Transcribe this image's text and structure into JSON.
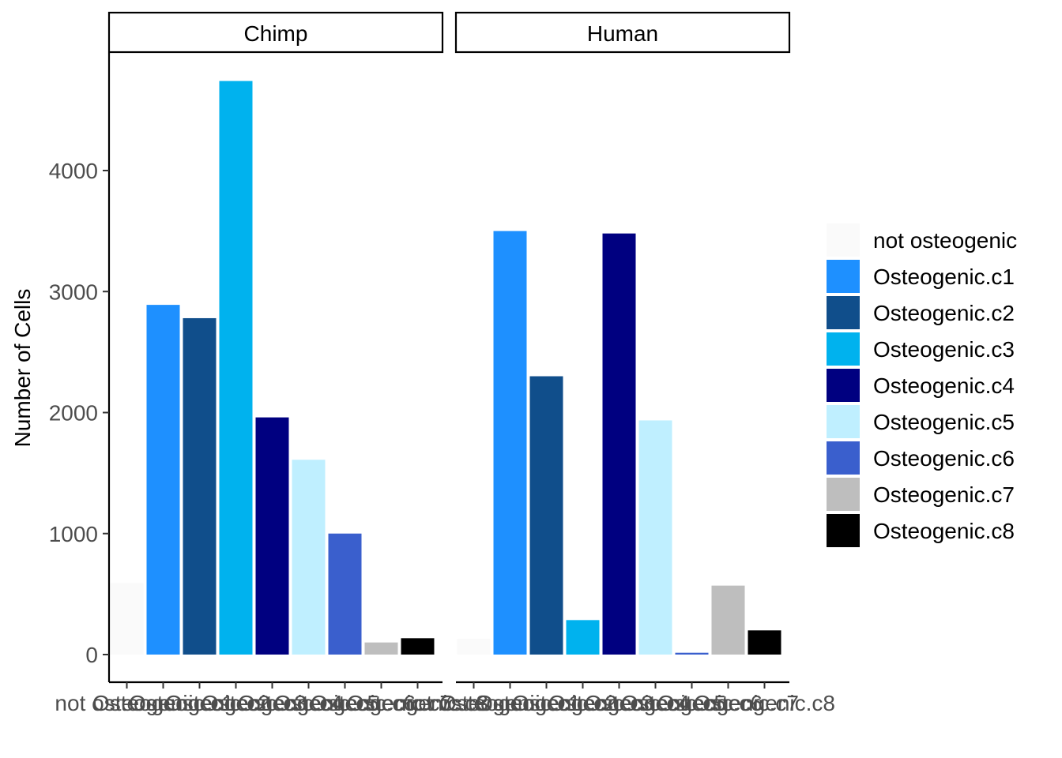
{
  "chart_data": {
    "type": "bar",
    "facet_strip": "top",
    "grid": false,
    "legend_position": "right",
    "ylabel": "Number of Cells",
    "xlabel": "",
    "ylim": [
      0,
      4900
    ],
    "yticks": [
      0,
      1000,
      2000,
      3000,
      4000
    ],
    "ytick_labels": [
      "0",
      "1000",
      "2000",
      "3000",
      "4000"
    ],
    "categories": [
      "not osteogenic",
      "Osteogenic.c1",
      "Osteogenic.c2",
      "Osteogenic.c3",
      "Osteogenic.c4",
      "Osteogenic.c5",
      "Osteogenic.c6",
      "Osteogenic.c7",
      "Osteogenic.c8"
    ],
    "colors": [
      "#FAFAFA",
      "#1E90FF",
      "#104E8B",
      "#00B2EE",
      "#000080",
      "#BFEFFF",
      "#3A5FCD",
      "#BEBEBE",
      "#000000"
    ],
    "facets": [
      {
        "name": "Chimp",
        "values": [
          590,
          2890,
          2780,
          4740,
          1960,
          1610,
          1000,
          100,
          135
        ]
      },
      {
        "name": "Human",
        "values": [
          130,
          3500,
          2300,
          285,
          3480,
          1935,
          15,
          570,
          200
        ]
      }
    ],
    "legend": {
      "entries": [
        "not osteogenic",
        "Osteogenic.c1",
        "Osteogenic.c2",
        "Osteogenic.c3",
        "Osteogenic.c4",
        "Osteogenic.c5",
        "Osteogenic.c6",
        "Osteogenic.c7",
        "Osteogenic.c8"
      ]
    }
  }
}
